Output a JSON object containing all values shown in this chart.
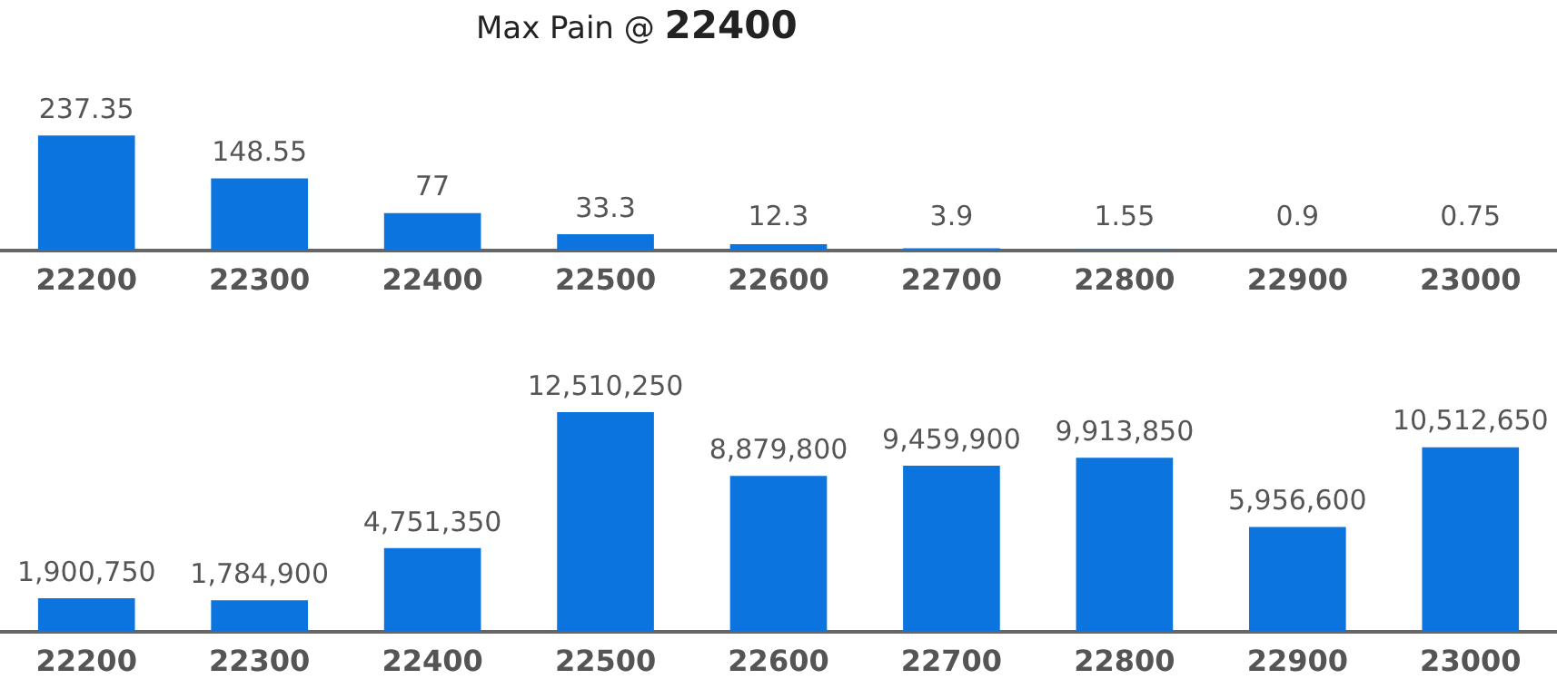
{
  "chart_data": [
    {
      "type": "bar",
      "title": "Max Pain @ 22400",
      "categories": [
        "22200",
        "22300",
        "22400",
        "22500",
        "22600",
        "22700",
        "22800",
        "22900",
        "23000"
      ],
      "values": [
        237.35,
        148.55,
        77,
        33.3,
        12.3,
        3.9,
        1.55,
        0.9,
        0.75
      ],
      "color": "#0b74de",
      "data_labels": true,
      "tick_labels": "x"
    },
    {
      "type": "bar",
      "categories": [
        "22200",
        "22300",
        "22400",
        "22500",
        "22600",
        "22700",
        "22800",
        "22900",
        "23000"
      ],
      "values": [
        1900750,
        1784900,
        4751350,
        12510250,
        8879800,
        9459900,
        9913850,
        5956600,
        10512650
      ],
      "value_labels": [
        "1,900,750",
        "1,784,900",
        "4,751,350",
        "12,510,250",
        "8,879,800",
        "9,459,900",
        "9,913,850",
        "5,956,600",
        "10,512,650"
      ],
      "color": "#0b74de",
      "tick_labels": "x"
    }
  ]
}
